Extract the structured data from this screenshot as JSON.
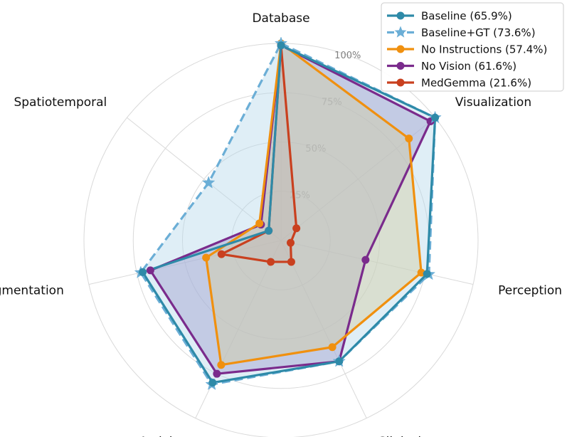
{
  "chart_data": {
    "type": "radar",
    "axes": [
      "Database",
      "Visualization",
      "Perception",
      "Clinical",
      "Activity",
      "Segmentation",
      "Spatiotemporal"
    ],
    "rlim": [
      0,
      100
    ],
    "ring_values": [
      25,
      50,
      75,
      100
    ],
    "ring_labels": [
      "25%",
      "50%",
      "75%",
      "100%"
    ],
    "legend_position": "top-right",
    "series": [
      {
        "name": "Baseline",
        "legend_label": "Baseline (65.9%)",
        "color": "#2e8aa8",
        "marker": "circle",
        "dashed": false,
        "filled": false,
        "values": [
          99,
          100,
          76,
          68,
          80,
          72,
          8
        ]
      },
      {
        "name": "Baseline+GT",
        "legend_label": "Baseline+GT (73.6%)",
        "color": "#6baed6",
        "fill": "#b9daec",
        "marker": "star",
        "dashed": true,
        "filled": true,
        "values": [
          100,
          100,
          77,
          68,
          81,
          73,
          47
        ]
      },
      {
        "name": "No Instructions",
        "legend_label": "No Instructions (57.4%)",
        "color": "#f0900f",
        "fill": "#e8c46a",
        "marker": "circle",
        "dashed": false,
        "filled": true,
        "values": [
          100,
          83,
          73,
          60,
          70,
          39,
          14
        ]
      },
      {
        "name": "No Vision",
        "legend_label": "No Vision (61.6%)",
        "color": "#7a2b8c",
        "fill": "#8e71b8",
        "marker": "circle",
        "dashed": false,
        "filled": true,
        "values": [
          99,
          97,
          44,
          68,
          75,
          68,
          13
        ]
      },
      {
        "name": "MedGemma",
        "legend_label": "MedGemma (21.6%)",
        "color": "#c9401f",
        "fill": "#c88a7f",
        "marker": "circle",
        "dashed": false,
        "filled": true,
        "values": [
          99,
          10,
          5,
          12,
          12,
          31,
          8
        ]
      }
    ]
  }
}
